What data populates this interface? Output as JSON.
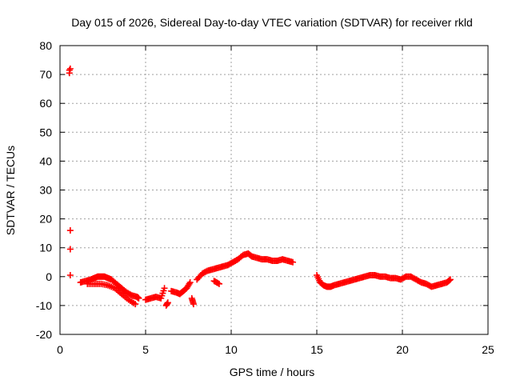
{
  "chart_data": {
    "type": "scatter",
    "title": "Day 015 of 2026, Sidereal Day-to-day VTEC variation (SDTVAR) for receiver rkld",
    "xlabel": "GPS time / hours",
    "ylabel": "SDTVAR / TECUs",
    "xlim": [
      0,
      25
    ],
    "ylim": [
      -20,
      80
    ],
    "x_ticks": [
      0,
      5,
      10,
      15,
      20,
      25
    ],
    "y_ticks": [
      -20,
      -10,
      0,
      10,
      20,
      30,
      40,
      50,
      60,
      70,
      80
    ],
    "grid": true,
    "marker": "+",
    "color": "#ff0000",
    "series": [
      {
        "name": "SDTVAR",
        "x": [
          0.55,
          0.55,
          0.6,
          0.6,
          0.6,
          0.6,
          1.2,
          1.5,
          1.8,
          2.0,
          2.2,
          2.4,
          2.6,
          2.8,
          3.0,
          3.3,
          3.6,
          3.9,
          4.2,
          4.5,
          4.6,
          1.6,
          2.0,
          2.4,
          2.8,
          3.2,
          3.6,
          4.0,
          4.4,
          5.0,
          5.3,
          5.6,
          5.9,
          6.1,
          6.2,
          6.3,
          6.5,
          6.8,
          7.0,
          7.2,
          7.4,
          7.6,
          7.7,
          7.8,
          8.0,
          8.3,
          8.6,
          8.9,
          9.2,
          9.5,
          9.8,
          10.1,
          10.4,
          10.7,
          11.0,
          11.2,
          11.5,
          11.8,
          12.1,
          12.4,
          12.7,
          13.0,
          13.3,
          13.6,
          9.0,
          9.3,
          15.0,
          15.2,
          15.4,
          15.6,
          15.8,
          16.0,
          16.3,
          16.6,
          16.9,
          17.2,
          17.5,
          17.8,
          18.1,
          18.4,
          18.7,
          19.0,
          19.3,
          19.6,
          19.9,
          20.2,
          20.5,
          20.8,
          21.1,
          21.4,
          21.7,
          22.0,
          22.3,
          22.6,
          22.8
        ],
        "y": [
          71.5,
          70.5,
          16,
          9.5,
          0.5,
          72,
          -2,
          -1.5,
          -1,
          -0.5,
          0,
          0,
          0,
          -0.5,
          -1,
          -2.5,
          -4,
          -5.5,
          -6.5,
          -7,
          -7.5,
          -2.5,
          -2.5,
          -2.5,
          -3,
          -4,
          -6,
          -8,
          -9.5,
          -8,
          -7.5,
          -7,
          -7.5,
          -4,
          -10,
          -9,
          -5,
          -5.5,
          -6,
          -5,
          -4,
          -2,
          -7.5,
          -9.5,
          -1,
          1,
          2,
          2.5,
          3,
          3.5,
          4,
          5,
          6,
          7.5,
          8,
          7,
          6.5,
          6,
          6,
          5.5,
          5.5,
          6,
          5.5,
          5,
          -1.5,
          -2.5,
          0.5,
          -2,
          -3,
          -3.5,
          -3.5,
          -3,
          -2.5,
          -2,
          -1.5,
          -1,
          -0.5,
          0,
          0.5,
          0.5,
          0,
          0,
          -0.5,
          -0.5,
          -1,
          0,
          0,
          -1,
          -2,
          -2.5,
          -3.5,
          -3,
          -2.5,
          -2,
          -1
        ]
      }
    ]
  }
}
